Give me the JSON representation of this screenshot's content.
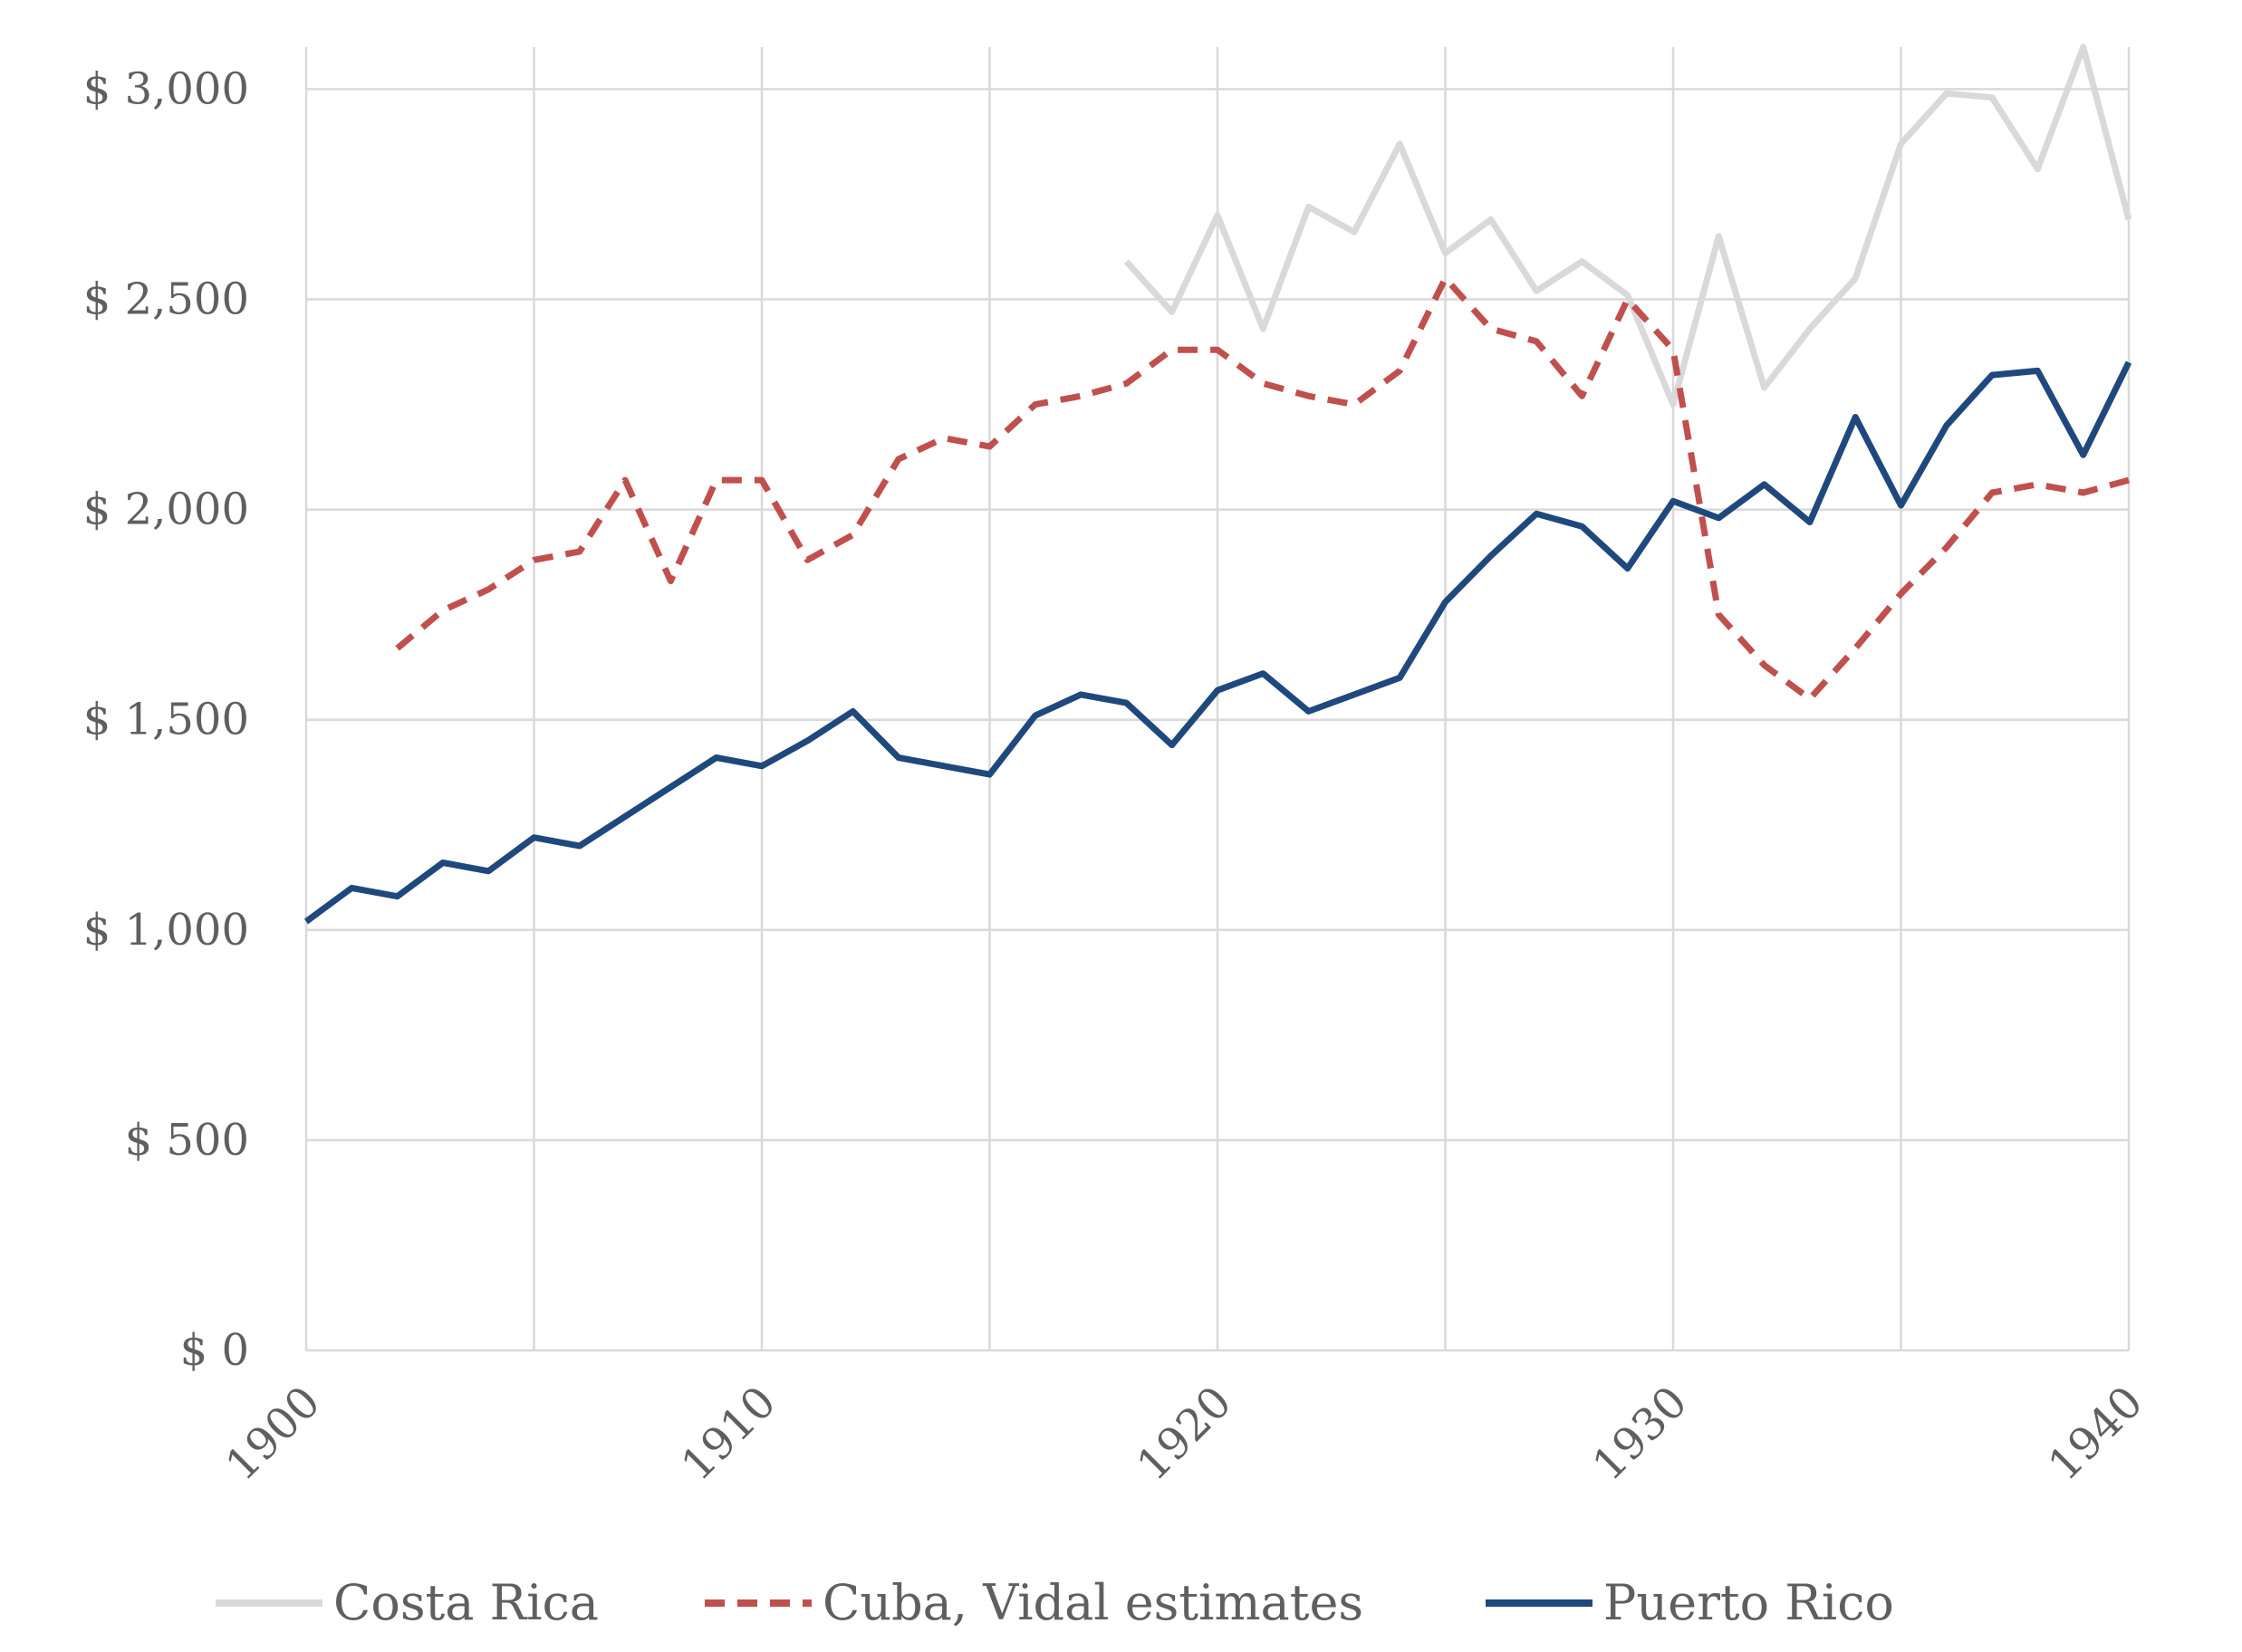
{
  "chart_data": {
    "type": "line",
    "title": "",
    "xlabel": "",
    "ylabel": "",
    "xlim": [
      1900,
      1940
    ],
    "ylim": [
      0,
      3100
    ],
    "x_ticks": [
      1900,
      1910,
      1920,
      1930,
      1940
    ],
    "y_ticks": [
      0,
      500,
      1000,
      1500,
      2000,
      2500,
      3000
    ],
    "x_tick_labels": [
      "1900",
      "1910",
      "1920",
      "1930",
      "1940"
    ],
    "y_tick_labels": [
      "$ 0",
      "$ 500",
      "$ 1,000",
      "$ 1,500",
      "$ 2,000",
      "$ 2,500",
      "$ 3,000"
    ],
    "grid": true,
    "legend_position": "bottom",
    "series": [
      {
        "name": "Costa Rica",
        "color": "#d9d9d9",
        "dash": "solid",
        "x": [
          1918,
          1919,
          1920,
          1921,
          1922,
          1923,
          1924,
          1925,
          1926,
          1927,
          1928,
          1929,
          1930,
          1931,
          1932,
          1933,
          1934,
          1935,
          1936,
          1937,
          1938,
          1939,
          1940
        ],
        "y": [
          2590,
          2470,
          2700,
          2430,
          2720,
          2660,
          2870,
          2610,
          2690,
          2520,
          2590,
          2510,
          2250,
          2650,
          2290,
          2430,
          2550,
          2870,
          2990,
          2980,
          2810,
          3100,
          2690
        ]
      },
      {
        "name": "Cuba, Vidal estimates",
        "color": "#c0504d",
        "dash": "dashed",
        "x": [
          1902,
          1903,
          1904,
          1905,
          1906,
          1907,
          1908,
          1909,
          1910,
          1911,
          1912,
          1913,
          1914,
          1915,
          1916,
          1917,
          1918,
          1919,
          1920,
          1921,
          1922,
          1923,
          1924,
          1925,
          1926,
          1927,
          1928,
          1929,
          1930,
          1931,
          1932,
          1933,
          1934,
          1935,
          1936,
          1937,
          1938,
          1939,
          1940
        ],
        "y": [
          1670,
          1760,
          1810,
          1880,
          1900,
          2070,
          1830,
          2070,
          2070,
          1880,
          1940,
          2120,
          2170,
          2150,
          2250,
          2270,
          2300,
          2380,
          2380,
          2300,
          2270,
          2250,
          2330,
          2550,
          2430,
          2400,
          2270,
          2500,
          2380,
          1750,
          1630,
          1550,
          1670,
          1800,
          1910,
          2040,
          2060,
          2040,
          2070
        ]
      },
      {
        "name": "Puerto Rico",
        "color": "#1f497d",
        "dash": "solid",
        "x": [
          1900,
          1901,
          1902,
          1903,
          1904,
          1905,
          1906,
          1907,
          1908,
          1909,
          1910,
          1911,
          1912,
          1913,
          1914,
          1915,
          1916,
          1917,
          1918,
          1919,
          1920,
          1921,
          1922,
          1923,
          1924,
          1925,
          1926,
          1927,
          1928,
          1929,
          1930,
          1931,
          1932,
          1933,
          1934,
          1935,
          1936,
          1937,
          1938,
          1939,
          1940
        ],
        "y": [
          1020,
          1100,
          1080,
          1160,
          1140,
          1220,
          1200,
          1270,
          1340,
          1410,
          1390,
          1450,
          1520,
          1410,
          1390,
          1370,
          1510,
          1560,
          1540,
          1440,
          1570,
          1610,
          1520,
          1560,
          1600,
          1780,
          1890,
          1990,
          1960,
          1860,
          2020,
          1980,
          2060,
          1970,
          2220,
          2010,
          2200,
          2320,
          2330,
          2130,
          2350
        ]
      }
    ]
  }
}
